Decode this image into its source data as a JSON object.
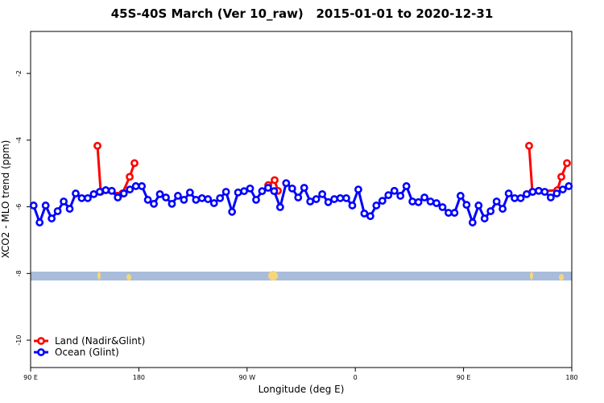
{
  "chart_data": {
    "type": "line",
    "title": "45S-40S March (Ver 10_raw)   2015-01-01 to 2020-12-31",
    "x_label": "Longitude (deg E)",
    "y_label": "XCO2 - MLO trend (ppm)",
    "xlim": [
      90,
      540
    ],
    "xticks": [
      {
        "value": 90,
        "label": "90 E"
      },
      {
        "value": 180,
        "label": "180"
      },
      {
        "value": 270,
        "label": "90 W"
      },
      {
        "value": 360,
        "label": "0"
      },
      {
        "value": 450,
        "label": "90 E"
      },
      {
        "value": 540,
        "label": "180"
      }
    ],
    "ylim": [
      -10.82,
      -0.74
    ],
    "yticks": [
      -10,
      -8,
      -6,
      -4,
      -2
    ],
    "legend": "bottom-left",
    "series": [
      {
        "name": "Land (Nadir&Glint)",
        "color": "#ff0000",
        "x": [
          145.6,
          148.3,
          166.3,
          172.4,
          176.4,
          280,
          287.6,
          292.9,
          295.6,
          500,
          504.5,
          507.2,
          528,
          531.3,
          536
        ],
        "values": [
          -4.17,
          -5.55,
          -5.6,
          -5.1,
          -4.69,
          null,
          -5.35,
          -5.2,
          -5.52,
          null,
          -4.17,
          -5.55,
          -5.5,
          -5.1,
          -4.69
        ]
      },
      {
        "name": "Ocean (Glint)",
        "color": "#0000ff",
        "x": [
          92.5,
          97.5,
          102.5,
          107.5,
          112.5,
          117.5,
          122.5,
          127.5,
          132.5,
          137.5,
          142.5,
          147.5,
          152.5,
          157.5,
          162.5,
          167.5,
          172.5,
          177.5,
          182.5,
          187.5,
          192.5,
          197.5,
          202.5,
          207.5,
          212.5,
          217.5,
          222.5,
          227.5,
          232.5,
          237.5,
          242.5,
          247.5,
          252.5,
          257.5,
          262.5,
          267.5,
          272.5,
          277.5,
          282.5,
          287.5,
          292.5,
          297.5,
          302.5,
          307.5,
          312.5,
          317.5,
          322.5,
          327.5,
          332.5,
          337.5,
          342.5,
          347.5,
          352.5,
          357.5,
          362.5,
          367.5,
          372.5,
          377.5,
          382.5,
          387.5,
          392.5,
          397.5,
          402.5,
          407.5,
          412.5,
          417.5,
          422.5,
          427.5,
          432.5,
          437.5,
          442.5,
          447.5,
          452.5,
          457.5,
          462.5,
          467.5,
          472.5,
          477.5,
          482.5,
          487.5,
          492.5,
          497.5,
          502.5,
          507.5,
          512.5,
          517.5,
          522.5,
          527.5,
          532.5,
          537.5
        ],
        "values": [
          -5.96,
          -6.47,
          -5.96,
          -6.35,
          -6.13,
          -5.84,
          -6.06,
          -5.6,
          -5.74,
          -5.74,
          -5.62,
          -5.55,
          -5.5,
          -5.52,
          -5.72,
          -5.6,
          -5.48,
          -5.38,
          -5.38,
          -5.79,
          -5.91,
          -5.62,
          -5.72,
          -5.91,
          -5.67,
          -5.79,
          -5.57,
          -5.79,
          -5.74,
          -5.77,
          -5.89,
          -5.74,
          -5.55,
          -6.15,
          -5.57,
          -5.53,
          -5.45,
          -5.79,
          -5.53,
          -5.43,
          -5.53,
          -6.01,
          -5.29,
          -5.45,
          -5.72,
          -5.43,
          -5.84,
          -5.77,
          -5.62,
          -5.86,
          -5.77,
          -5.74,
          -5.74,
          -5.96,
          -5.48,
          -6.2,
          -6.28,
          -5.96,
          -5.82,
          -5.65,
          -5.52,
          -5.67,
          -5.38,
          -5.84,
          -5.86,
          -5.72,
          -5.84,
          -5.89,
          -6.01,
          -6.18,
          -6.18,
          -5.67,
          -5.94,
          -6.47,
          -5.96,
          -6.35,
          -6.13,
          -5.84,
          -6.06,
          -5.6,
          -5.74,
          -5.74,
          -5.62,
          -5.55,
          -5.52,
          -5.55,
          -5.72,
          -5.6,
          -5.48,
          -5.38
        ]
      }
    ]
  }
}
